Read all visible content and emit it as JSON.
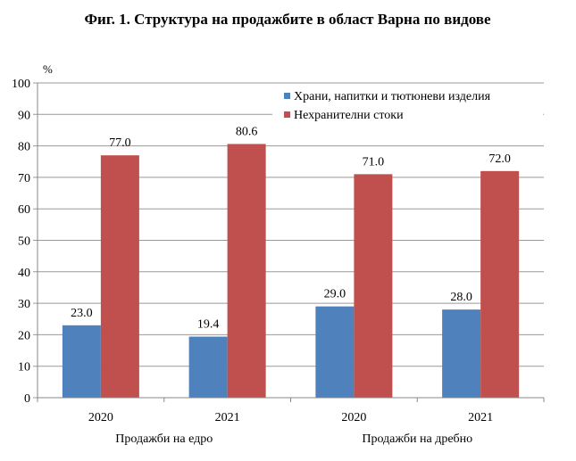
{
  "chart_data": {
    "type": "bar",
    "title": "Фиг. 1. Структура на продажбите в област Варна по видове",
    "ylabel": "%",
    "ylim": [
      0,
      100
    ],
    "yticks": [
      "0",
      "10",
      "20",
      "30",
      "40",
      "50",
      "60",
      "70",
      "80",
      "90",
      "100"
    ],
    "grid": true,
    "legend_position": "top-right",
    "categories": [
      "2020",
      "2021",
      "2020",
      "2021"
    ],
    "category_groups": [
      {
        "label": "Продажби на едро",
        "span": [
          0,
          1
        ]
      },
      {
        "label": "Продажби на дребно",
        "span": [
          2,
          3
        ]
      }
    ],
    "series": [
      {
        "name": "Храни, напитки и тютюневи изделия",
        "color": "#4f81bd",
        "values": [
          23.0,
          19.4,
          29.0,
          28.0
        ],
        "labels": [
          "23.0",
          "19.4",
          "29.0",
          "28.0"
        ]
      },
      {
        "name": "Нехранителни  стоки",
        "color": "#c0504d",
        "values": [
          77.0,
          80.6,
          71.0,
          72.0
        ],
        "labels": [
          "77.0",
          "80.6",
          "71.0",
          "72.0"
        ]
      }
    ]
  }
}
